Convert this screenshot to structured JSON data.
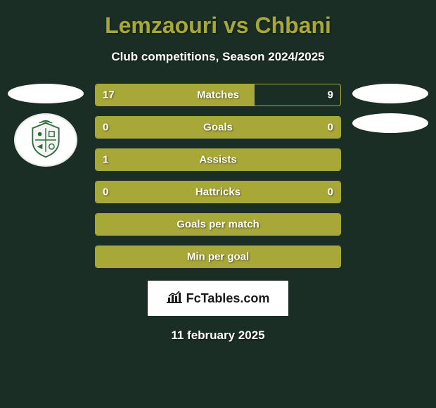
{
  "title": "Lemzaouri vs Chbani",
  "subtitle": "Club competitions, Season 2024/2025",
  "colors": {
    "background": "#1a2e26",
    "accent": "#a8a839",
    "text": "#ffffff"
  },
  "bars": [
    {
      "label": "Matches",
      "left_value": "17",
      "right_value": "9",
      "left_pct": 65,
      "right_pct": 35,
      "show_values": true
    },
    {
      "label": "Goals",
      "left_value": "0",
      "right_value": "0",
      "left_pct": 50,
      "right_pct": 50,
      "show_values": true,
      "full": true
    },
    {
      "label": "Assists",
      "left_value": "1",
      "right_value": "",
      "left_pct": 100,
      "right_pct": 0,
      "show_values": true,
      "full": true
    },
    {
      "label": "Hattricks",
      "left_value": "0",
      "right_value": "0",
      "left_pct": 50,
      "right_pct": 50,
      "show_values": true,
      "full": true
    },
    {
      "label": "Goals per match",
      "left_value": "",
      "right_value": "",
      "left_pct": 100,
      "right_pct": 0,
      "show_values": false,
      "full": true
    },
    {
      "label": "Min per goal",
      "left_value": "",
      "right_value": "",
      "left_pct": 100,
      "right_pct": 0,
      "show_values": false,
      "full": true
    }
  ],
  "logo": "FcTables.com",
  "date": "11 february 2025"
}
